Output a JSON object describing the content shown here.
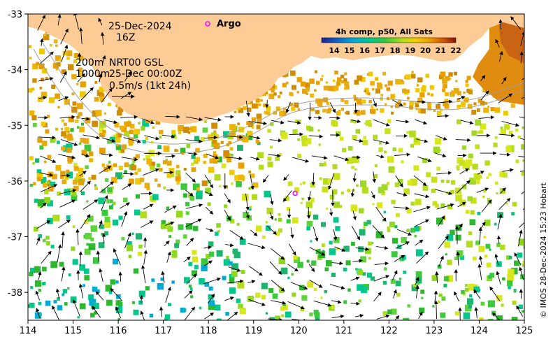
{
  "map": {
    "lon_ticks": [
      "114",
      "115",
      "116",
      "117",
      "118",
      "119",
      "120",
      "121",
      "122",
      "123",
      "124",
      "125"
    ],
    "lat_ticks": [
      "-33",
      "-34",
      "-35",
      "-36",
      "-37",
      "-38"
    ],
    "lon_range": [
      114,
      125
    ],
    "lat_range": [
      -38.5,
      -33
    ]
  },
  "annotations": {
    "date": "25-Dec-2024",
    "time": "16Z",
    "argo_label": "Argo",
    "isobath_shallow": "200m",
    "isobath_deep": "1000m",
    "current_source": "NRT00 GSL",
    "current_time": "25-Dec 00:00Z",
    "scale_arrow": "0.5m/s (1kt 24h)"
  },
  "argo_float": {
    "lon": 119.92,
    "lat": -36.22
  },
  "colorbar": {
    "title": "4h comp, p50, All Sats",
    "ticks": [
      "14",
      "15",
      "16",
      "17",
      "18",
      "19",
      "20",
      "21",
      "22"
    ],
    "colors": [
      "#1e1e8c",
      "#0a64c8",
      "#00aad2",
      "#00c88c",
      "#3cc83c",
      "#b4dc1e",
      "#f0d200",
      "#f0a000",
      "#d25a00",
      "#8c1400"
    ]
  },
  "credit": "© IMOS 28-Dec-2024 15:23 Hobart"
}
